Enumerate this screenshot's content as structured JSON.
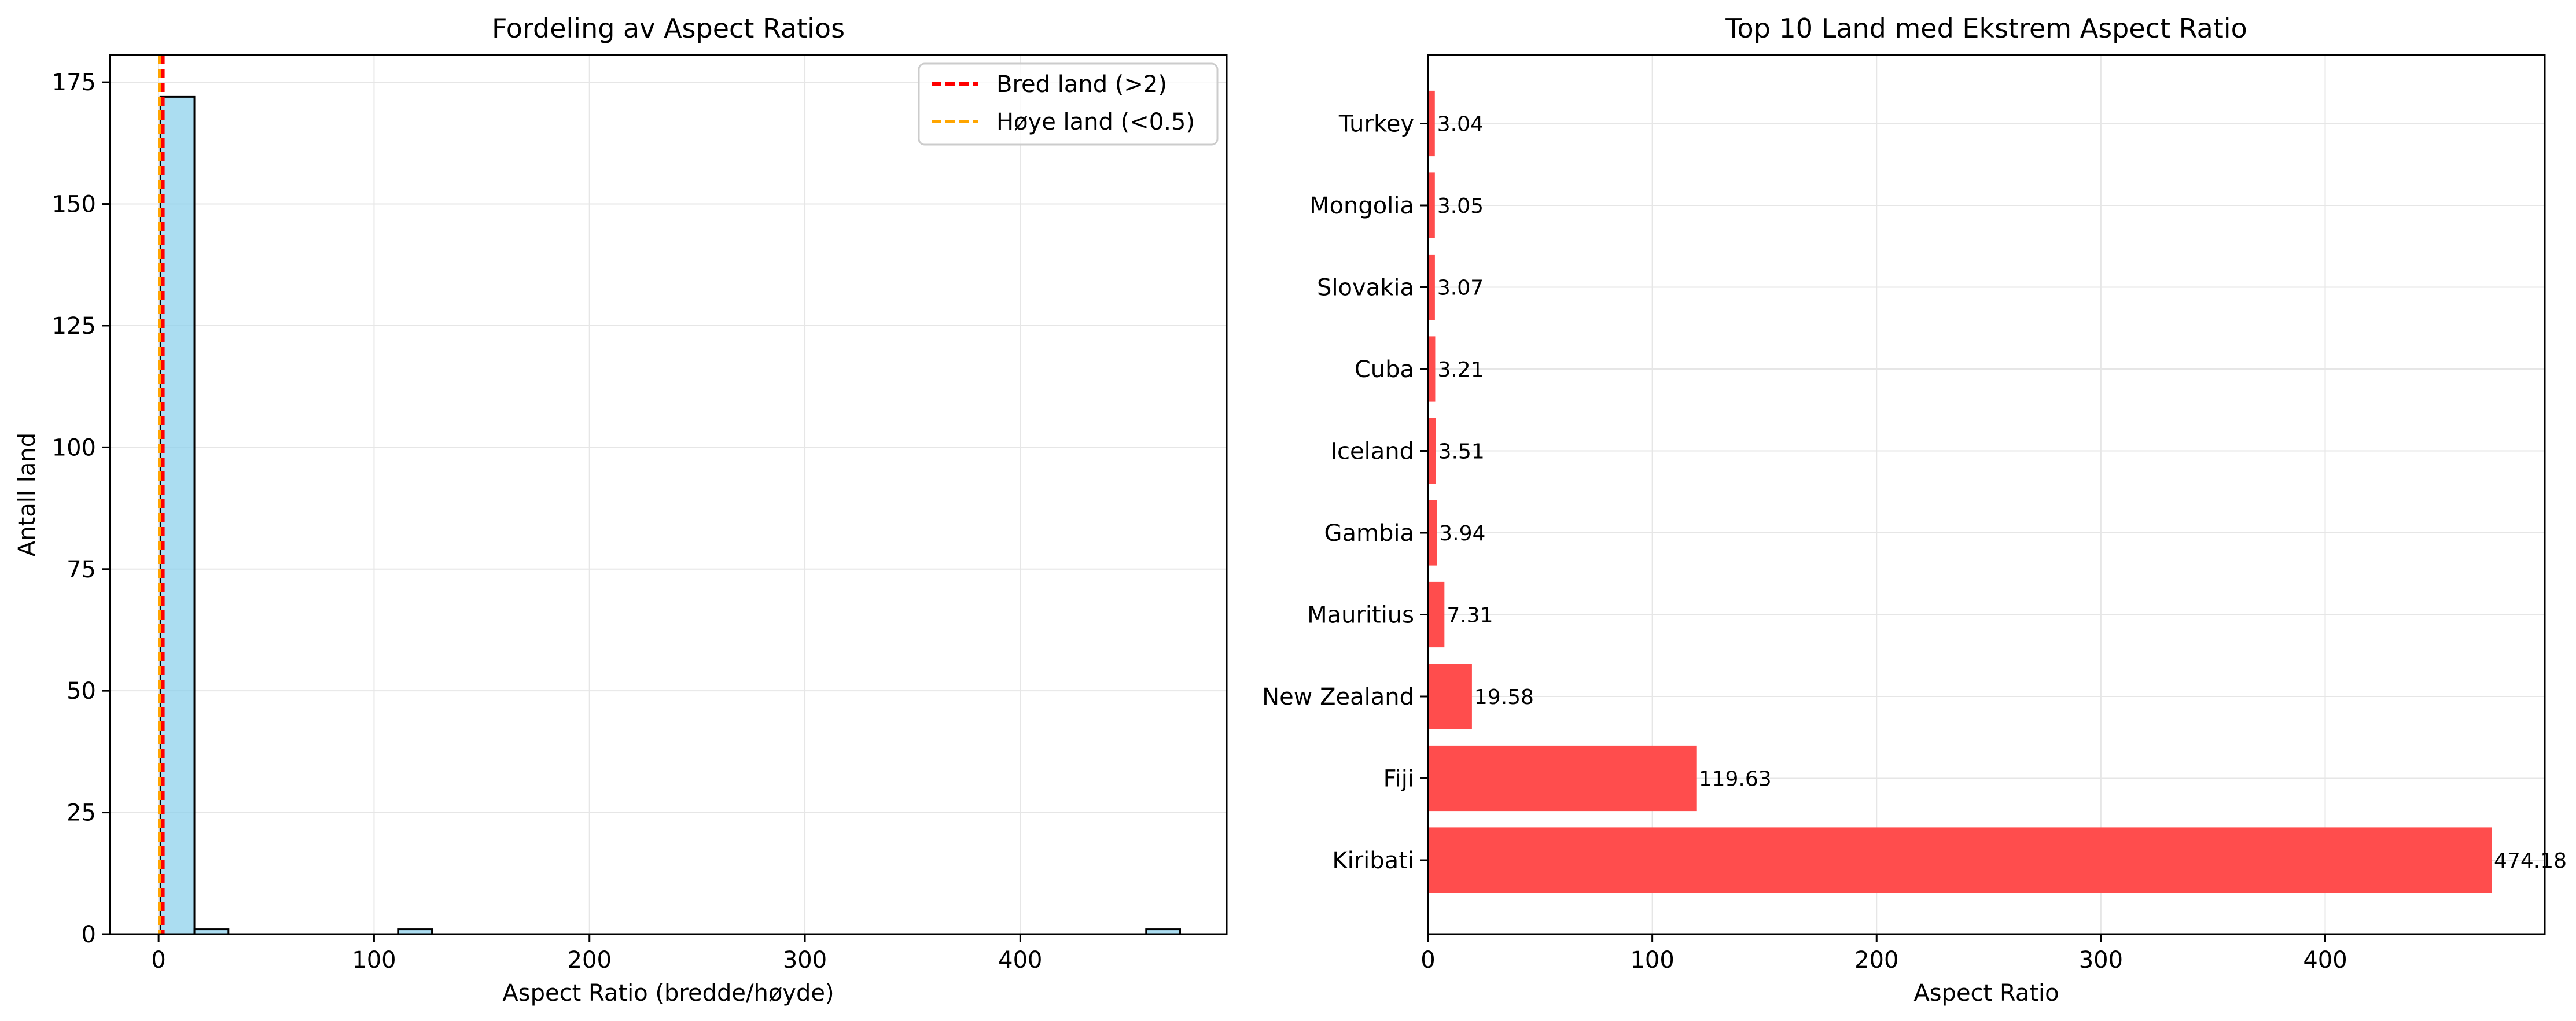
{
  "chart_data": [
    {
      "type": "bar",
      "subtype": "histogram",
      "title": "Fordeling av Aspect Ratios",
      "xlabel": "Aspect Ratio (bredde/høyde)",
      "ylabel": "Antall land",
      "xlim": [
        -22.6,
        495.8
      ],
      "ylim": [
        0,
        180.6
      ],
      "xticks": [
        0,
        100,
        200,
        300,
        400
      ],
      "yticks": [
        0,
        25,
        50,
        75,
        100,
        125,
        150,
        175
      ],
      "grid": true,
      "bars": [
        {
          "x0": 0.85,
          "x1": 16.63,
          "count": 172
        },
        {
          "x0": 16.63,
          "x1": 32.41,
          "count": 1
        },
        {
          "x0": 111.11,
          "x1": 126.89,
          "count": 1
        },
        {
          "x0": 458.4,
          "x1": 474.18,
          "count": 1
        }
      ],
      "bar_color": "#87CEEB",
      "vlines": [
        {
          "x": 2,
          "label": "Bred land (>2)",
          "color": "#ff0000"
        },
        {
          "x": 0.5,
          "label": "Høye land (<0.5)",
          "color": "#ffa500"
        }
      ],
      "legend_position": "top-right"
    },
    {
      "type": "bar",
      "orientation": "horizontal",
      "title": "Top 10 Land med Ekstrem Aspect Ratio",
      "xlabel": "Aspect Ratio",
      "ylabel": "",
      "xlim": [
        0,
        497.9
      ],
      "xticks": [
        0,
        100,
        200,
        300,
        400
      ],
      "grid": true,
      "bar_color": "#ff4d4d",
      "categories": [
        "Kiribati",
        "Fiji",
        "New Zealand",
        "Mauritius",
        "Gambia",
        "Iceland",
        "Cuba",
        "Slovakia",
        "Mongolia",
        "Turkey"
      ],
      "values": [
        474.18,
        119.63,
        19.58,
        7.31,
        3.94,
        3.51,
        3.21,
        3.07,
        3.05,
        3.04
      ],
      "value_labels": [
        "474.18",
        "119.63",
        "19.58",
        "7.31",
        "3.94",
        "3.51",
        "3.21",
        "3.07",
        "3.05",
        "3.04"
      ]
    }
  ]
}
